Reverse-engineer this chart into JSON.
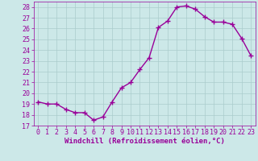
{
  "x": [
    0,
    1,
    2,
    3,
    4,
    5,
    6,
    7,
    8,
    9,
    10,
    11,
    12,
    13,
    14,
    15,
    16,
    17,
    18,
    19,
    20,
    21,
    22,
    23
  ],
  "y": [
    19.2,
    19.0,
    19.0,
    18.5,
    18.2,
    18.2,
    17.5,
    17.8,
    19.2,
    20.5,
    21.0,
    22.2,
    23.3,
    26.1,
    26.7,
    28.0,
    28.1,
    27.8,
    27.1,
    26.6,
    26.6,
    26.4,
    25.1,
    23.5
  ],
  "line_color": "#990099",
  "marker": "+",
  "marker_size": 4,
  "bg_color": "#cce8e8",
  "grid_color": "#aacccc",
  "xlabel": "Windchill (Refroidissement éolien,°C)",
  "xlabel_color": "#990099",
  "tick_color": "#990099",
  "ylim": [
    17,
    28.5
  ],
  "xlim": [
    -0.5,
    23.5
  ],
  "yticks": [
    17,
    18,
    19,
    20,
    21,
    22,
    23,
    24,
    25,
    26,
    27,
    28
  ],
  "xticks": [
    0,
    1,
    2,
    3,
    4,
    5,
    6,
    7,
    8,
    9,
    10,
    11,
    12,
    13,
    14,
    15,
    16,
    17,
    18,
    19,
    20,
    21,
    22,
    23
  ],
  "linewidth": 1.0,
  "ytick_fontsize": 6.0,
  "xtick_fontsize": 5.5,
  "xlabel_fontsize": 6.5
}
